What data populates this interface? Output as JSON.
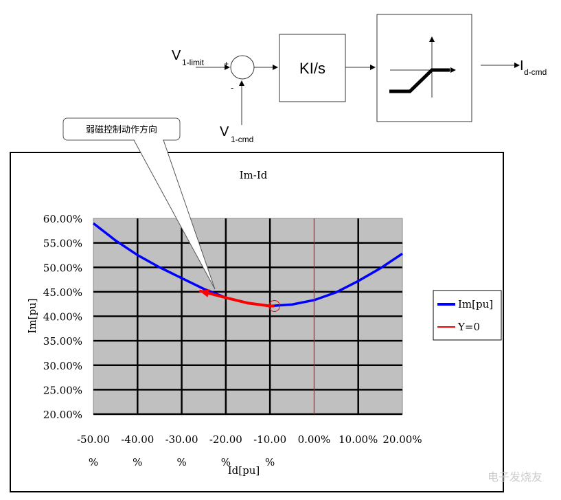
{
  "diagram": {
    "input_limit": "V",
    "input_limit_sub": "1-limit",
    "input_cmd": "V",
    "input_cmd_sub": "1-cmd",
    "plus_sign": "+",
    "minus_sign": "-",
    "integrator_label": "KI/s",
    "output": "I",
    "output_sub": "d-cmd",
    "callout": "弱磁控制动作方向"
  },
  "chart_data": {
    "type": "line",
    "title": "Im-Id",
    "xlabel": "Id[pu]",
    "ylabel": "Im[pu]",
    "xlim": [
      -50,
      20
    ],
    "ylim": [
      20,
      60
    ],
    "grid": true,
    "plot_background": "#c0c0c0",
    "legend_position": "right",
    "x_ticks": [
      {
        "value": -50,
        "num": "-50.00",
        "unit": "%"
      },
      {
        "value": -40,
        "num": "-40.00",
        "unit": "%"
      },
      {
        "value": -30,
        "num": "-30.00",
        "unit": "%"
      },
      {
        "value": -20,
        "num": "-20.00",
        "unit": "%"
      },
      {
        "value": -10,
        "num": "-10.00",
        "unit": "%"
      },
      {
        "value": 0,
        "num": "0.00%",
        "unit": ""
      },
      {
        "value": 10,
        "num": "10.00%",
        "unit": ""
      },
      {
        "value": 20,
        "num": "20.00%",
        "unit": ""
      }
    ],
    "y_ticks": [
      "20.00%",
      "25.00%",
      "30.00%",
      "35.00%",
      "40.00%",
      "45.00%",
      "50.00%",
      "55.00%",
      "60.00%"
    ],
    "series": [
      {
        "name": "Im[pu]",
        "color": "#0000ff",
        "x": [
          -50,
          -45,
          -40,
          -35,
          -30,
          -25,
          -20,
          -15,
          -10,
          -5,
          0,
          5,
          10,
          15,
          20
        ],
        "y": [
          59,
          55.5,
          52.5,
          50,
          47.8,
          45.6,
          43.8,
          42.7,
          42.1,
          42.4,
          43.3,
          44.9,
          47.2,
          49.8,
          52.8
        ]
      },
      {
        "name": "Y=0",
        "color": "#ff0000",
        "x": [
          0,
          0
        ],
        "y": [
          20,
          60
        ]
      }
    ],
    "annotation_arrow": {
      "color": "#ff0000",
      "x": [
        -9,
        -10,
        -15,
        -20,
        -26
      ],
      "y": [
        42.1,
        42.1,
        42.7,
        43.8,
        45.2
      ]
    },
    "annotation_marker": {
      "x": -9,
      "y": 42.1
    }
  },
  "watermark": "电子发烧友"
}
